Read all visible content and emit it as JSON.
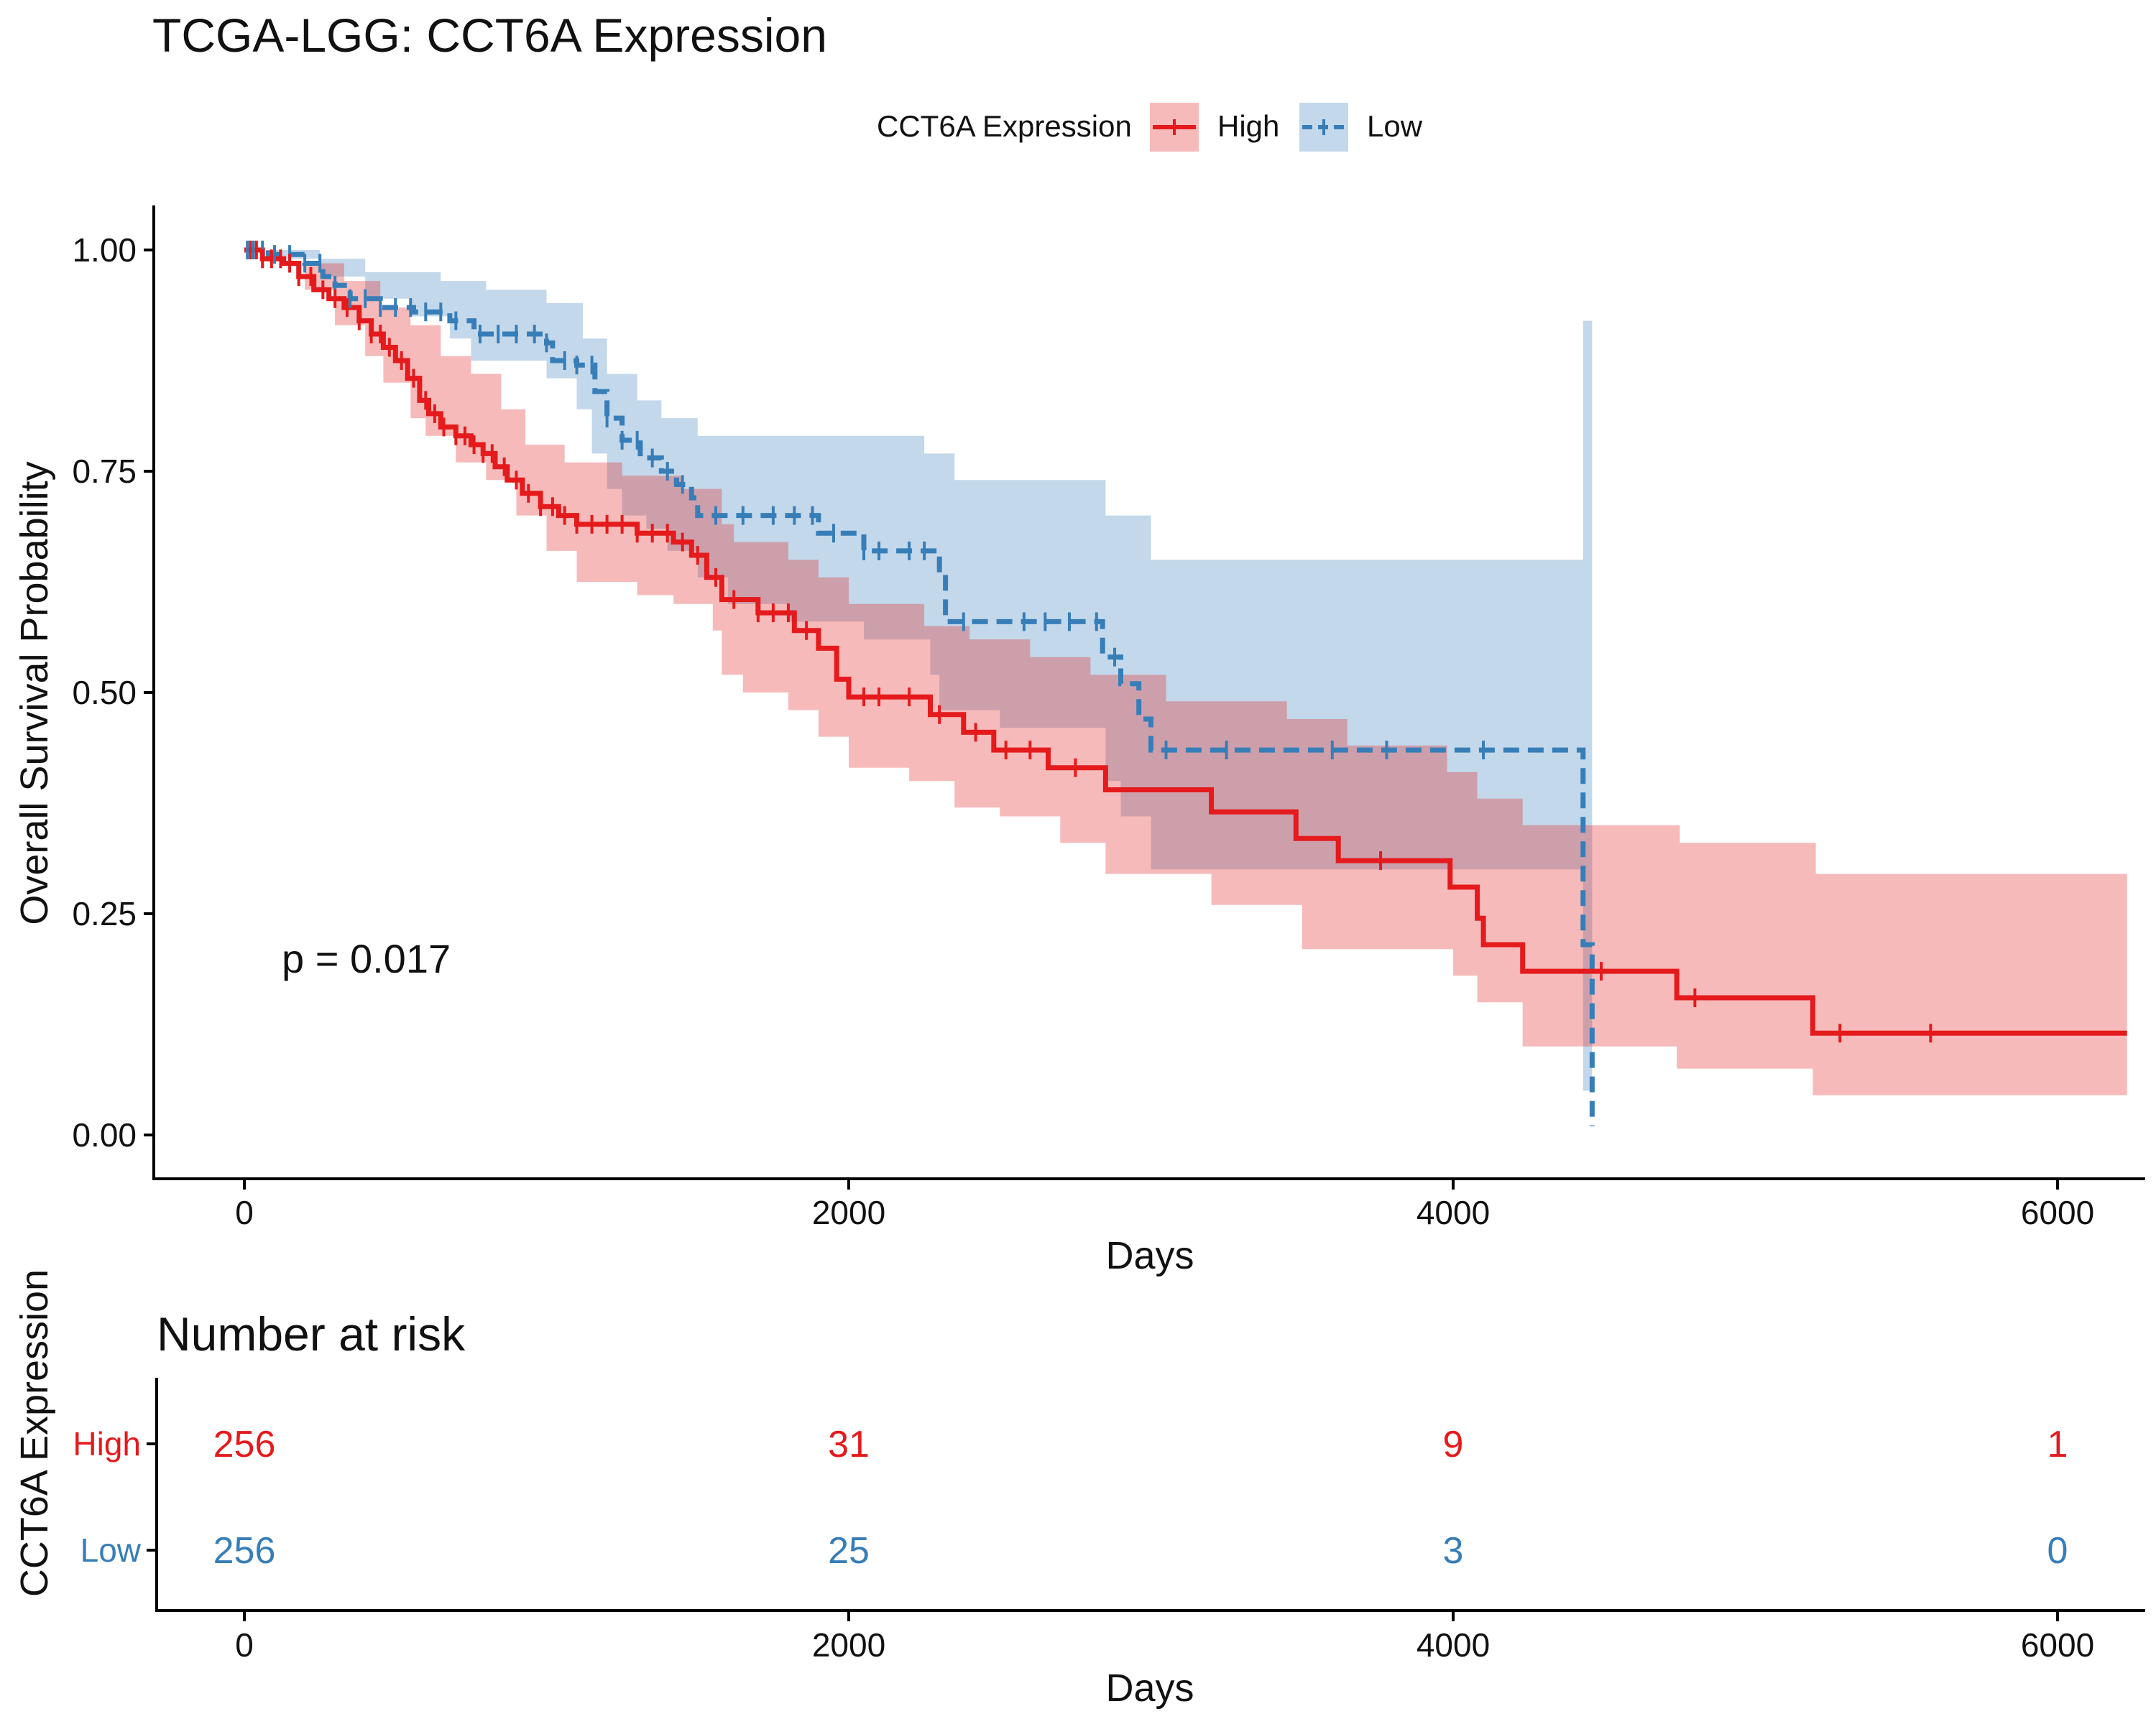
{
  "chart_data": [
    {
      "type": "line",
      "subtype": "kaplan-meier",
      "title": "TCGA-LGG: CCT6A Expression",
      "xlabel": "Days",
      "ylabel": "Overall Survival Probability",
      "xlim": [
        -300,
        6300
      ],
      "ylim": [
        -0.05,
        1.05
      ],
      "xticks": [
        0,
        2000,
        4000,
        6000
      ],
      "yticks": [
        "0.00",
        "0.25",
        "0.50",
        "0.75",
        "1.00"
      ],
      "grid": false,
      "annotation": "p = 0.017",
      "legend": {
        "title": "CCT6A Expression",
        "position": "top",
        "labels": [
          "High",
          "Low"
        ]
      },
      "series": [
        {
          "name": "High",
          "color": "#E41A1C",
          "dash": "solid",
          "curve": [
            [
              0,
              1.0
            ],
            [
              60,
              0.99
            ],
            [
              130,
              0.985
            ],
            [
              180,
              0.97
            ],
            [
              230,
              0.955
            ],
            [
              280,
              0.945
            ],
            [
              330,
              0.935
            ],
            [
              380,
              0.92
            ],
            [
              420,
              0.905
            ],
            [
              460,
              0.89
            ],
            [
              500,
              0.875
            ],
            [
              540,
              0.855
            ],
            [
              580,
              0.83
            ],
            [
              610,
              0.815
            ],
            [
              650,
              0.8
            ],
            [
              700,
              0.79
            ],
            [
              750,
              0.78
            ],
            [
              790,
              0.77
            ],
            [
              830,
              0.755
            ],
            [
              870,
              0.74
            ],
            [
              920,
              0.725
            ],
            [
              980,
              0.71
            ],
            [
              1040,
              0.7
            ],
            [
              1100,
              0.69
            ],
            [
              1300,
              0.68
            ],
            [
              1420,
              0.67
            ],
            [
              1480,
              0.655
            ],
            [
              1530,
              0.63
            ],
            [
              1580,
              0.605
            ],
            [
              1700,
              0.59
            ],
            [
              1820,
              0.57
            ],
            [
              1900,
              0.55
            ],
            [
              1960,
              0.515
            ],
            [
              2000,
              0.495
            ],
            [
              2270,
              0.475
            ],
            [
              2380,
              0.455
            ],
            [
              2480,
              0.435
            ],
            [
              2660,
              0.415
            ],
            [
              2850,
              0.39
            ],
            [
              3200,
              0.365
            ],
            [
              3480,
              0.335
            ],
            [
              3620,
              0.31
            ],
            [
              3990,
              0.28
            ],
            [
              4080,
              0.245
            ],
            [
              4100,
              0.215
            ],
            [
              4230,
              0.185
            ],
            [
              4740,
              0.155
            ],
            [
              5190,
              0.115
            ],
            [
              6230,
              0.115
            ]
          ],
          "ci_upper": [
            [
              0,
              1.0
            ],
            [
              200,
              0.985
            ],
            [
              330,
              0.965
            ],
            [
              450,
              0.935
            ],
            [
              550,
              0.915
            ],
            [
              650,
              0.88
            ],
            [
              750,
              0.86
            ],
            [
              850,
              0.82
            ],
            [
              930,
              0.78
            ],
            [
              1060,
              0.76
            ],
            [
              1250,
              0.745
            ],
            [
              1450,
              0.73
            ],
            [
              1580,
              0.69
            ],
            [
              1620,
              0.67
            ],
            [
              1800,
              0.65
            ],
            [
              1900,
              0.63
            ],
            [
              2000,
              0.6
            ],
            [
              2250,
              0.575
            ],
            [
              2400,
              0.56
            ],
            [
              2600,
              0.54
            ],
            [
              2800,
              0.52
            ],
            [
              3050,
              0.49
            ],
            [
              3450,
              0.47
            ],
            [
              3650,
              0.44
            ],
            [
              3980,
              0.41
            ],
            [
              4080,
              0.38
            ],
            [
              4230,
              0.35
            ],
            [
              4750,
              0.33
            ],
            [
              5200,
              0.295
            ],
            [
              6230,
              0.295
            ]
          ],
          "ci_lower": [
            [
              0,
              1.0
            ],
            [
              200,
              0.955
            ],
            [
              300,
              0.915
            ],
            [
              400,
              0.88
            ],
            [
              460,
              0.85
            ],
            [
              550,
              0.81
            ],
            [
              600,
              0.79
            ],
            [
              700,
              0.76
            ],
            [
              800,
              0.74
            ],
            [
              900,
              0.7
            ],
            [
              1000,
              0.66
            ],
            [
              1100,
              0.625
            ],
            [
              1300,
              0.61
            ],
            [
              1420,
              0.6
            ],
            [
              1550,
              0.57
            ],
            [
              1580,
              0.52
            ],
            [
              1650,
              0.5
            ],
            [
              1800,
              0.48
            ],
            [
              1900,
              0.45
            ],
            [
              2000,
              0.415
            ],
            [
              2200,
              0.4
            ],
            [
              2350,
              0.37
            ],
            [
              2500,
              0.36
            ],
            [
              2700,
              0.33
            ],
            [
              2850,
              0.295
            ],
            [
              3200,
              0.26
            ],
            [
              3500,
              0.21
            ],
            [
              4000,
              0.18
            ],
            [
              4080,
              0.15
            ],
            [
              4230,
              0.1
            ],
            [
              4740,
              0.075
            ],
            [
              5190,
              0.045
            ],
            [
              6230,
              0.045
            ]
          ],
          "censor_x": [
            20,
            40,
            60,
            90,
            120,
            150,
            180,
            220,
            260,
            300,
            340,
            380,
            420,
            450,
            480,
            520,
            560,
            600,
            630,
            660,
            700,
            730,
            760,
            790,
            820,
            860,
            900,
            940,
            980,
            1020,
            1060,
            1100,
            1150,
            1200,
            1250,
            1300,
            1350,
            1400,
            1450,
            1500,
            1560,
            1620,
            1700,
            1750,
            1800,
            1860,
            2050,
            2100,
            2200,
            2300,
            2420,
            2520,
            2600,
            2750,
            3760,
            4490,
            4800,
            5280,
            5580
          ]
        },
        {
          "name": "Low",
          "color": "#377EB8",
          "dash": "dashed",
          "curve": [
            [
              0,
              1.0
            ],
            [
              80,
              0.995
            ],
            [
              200,
              0.985
            ],
            [
              260,
              0.97
            ],
            [
              300,
              0.96
            ],
            [
              350,
              0.945
            ],
            [
              450,
              0.935
            ],
            [
              560,
              0.93
            ],
            [
              680,
              0.92
            ],
            [
              760,
              0.905
            ],
            [
              1000,
              0.895
            ],
            [
              1020,
              0.875
            ],
            [
              1100,
              0.87
            ],
            [
              1160,
              0.84
            ],
            [
              1200,
              0.81
            ],
            [
              1250,
              0.785
            ],
            [
              1310,
              0.765
            ],
            [
              1380,
              0.75
            ],
            [
              1430,
              0.735
            ],
            [
              1480,
              0.72
            ],
            [
              1500,
              0.7
            ],
            [
              1900,
              0.68
            ],
            [
              2050,
              0.66
            ],
            [
              2300,
              0.635
            ],
            [
              2320,
              0.58
            ],
            [
              2840,
              0.54
            ],
            [
              2900,
              0.51
            ],
            [
              2960,
              0.47
            ],
            [
              3000,
              0.435
            ],
            [
              4430,
              0.215
            ],
            [
              4460,
              0.01
            ]
          ],
          "ci_upper": [
            [
              0,
              1.0
            ],
            [
              100,
              1.0
            ],
            [
              250,
              0.99
            ],
            [
              400,
              0.975
            ],
            [
              650,
              0.965
            ],
            [
              800,
              0.955
            ],
            [
              1000,
              0.94
            ],
            [
              1120,
              0.9
            ],
            [
              1200,
              0.86
            ],
            [
              1300,
              0.83
            ],
            [
              1380,
              0.81
            ],
            [
              1500,
              0.79
            ],
            [
              2250,
              0.77
            ],
            [
              2350,
              0.74
            ],
            [
              2850,
              0.7
            ],
            [
              3000,
              0.65
            ],
            [
              4430,
              0.65
            ],
            [
              4430,
              0.92
            ],
            [
              4460,
              0.92
            ]
          ],
          "ci_lower": [
            [
              0,
              1.0
            ],
            [
              100,
              0.99
            ],
            [
              250,
              0.97
            ],
            [
              400,
              0.945
            ],
            [
              550,
              0.925
            ],
            [
              680,
              0.9
            ],
            [
              750,
              0.875
            ],
            [
              1000,
              0.855
            ],
            [
              1100,
              0.82
            ],
            [
              1150,
              0.77
            ],
            [
              1200,
              0.73
            ],
            [
              1250,
              0.7
            ],
            [
              1330,
              0.685
            ],
            [
              1400,
              0.66
            ],
            [
              1500,
              0.63
            ],
            [
              1600,
              0.6
            ],
            [
              1800,
              0.58
            ],
            [
              2050,
              0.56
            ],
            [
              2270,
              0.52
            ],
            [
              2300,
              0.48
            ],
            [
              2500,
              0.46
            ],
            [
              2850,
              0.4
            ],
            [
              2900,
              0.36
            ],
            [
              3000,
              0.3
            ],
            [
              4430,
              0.3
            ],
            [
              4430,
              0.05
            ],
            [
              4460,
              0.05
            ]
          ],
          "censor_x": [
            10,
            30,
            60,
            100,
            150,
            200,
            250,
            300,
            350,
            400,
            450,
            500,
            550,
            600,
            650,
            700,
            780,
            840,
            900,
            960,
            1000,
            1060,
            1100,
            1150,
            1200,
            1250,
            1300,
            1350,
            1400,
            1450,
            1560,
            1650,
            1750,
            1820,
            1880,
            1950,
            2050,
            2100,
            2200,
            2250,
            2380,
            2580,
            2650,
            2730,
            2820,
            2880,
            3050,
            3250,
            3600,
            3780,
            4100
          ]
        }
      ]
    },
    {
      "type": "table",
      "title": "Number at risk",
      "xlabel": "Days",
      "ylabel": "CCT6A Expression",
      "xticks": [
        0,
        2000,
        4000,
        6000
      ],
      "rows": [
        {
          "name": "High",
          "color": "#E41A1C",
          "values": [
            256,
            31,
            9,
            1
          ]
        },
        {
          "name": "Low",
          "color": "#377EB8",
          "values": [
            256,
            25,
            3,
            0
          ]
        }
      ]
    }
  ]
}
